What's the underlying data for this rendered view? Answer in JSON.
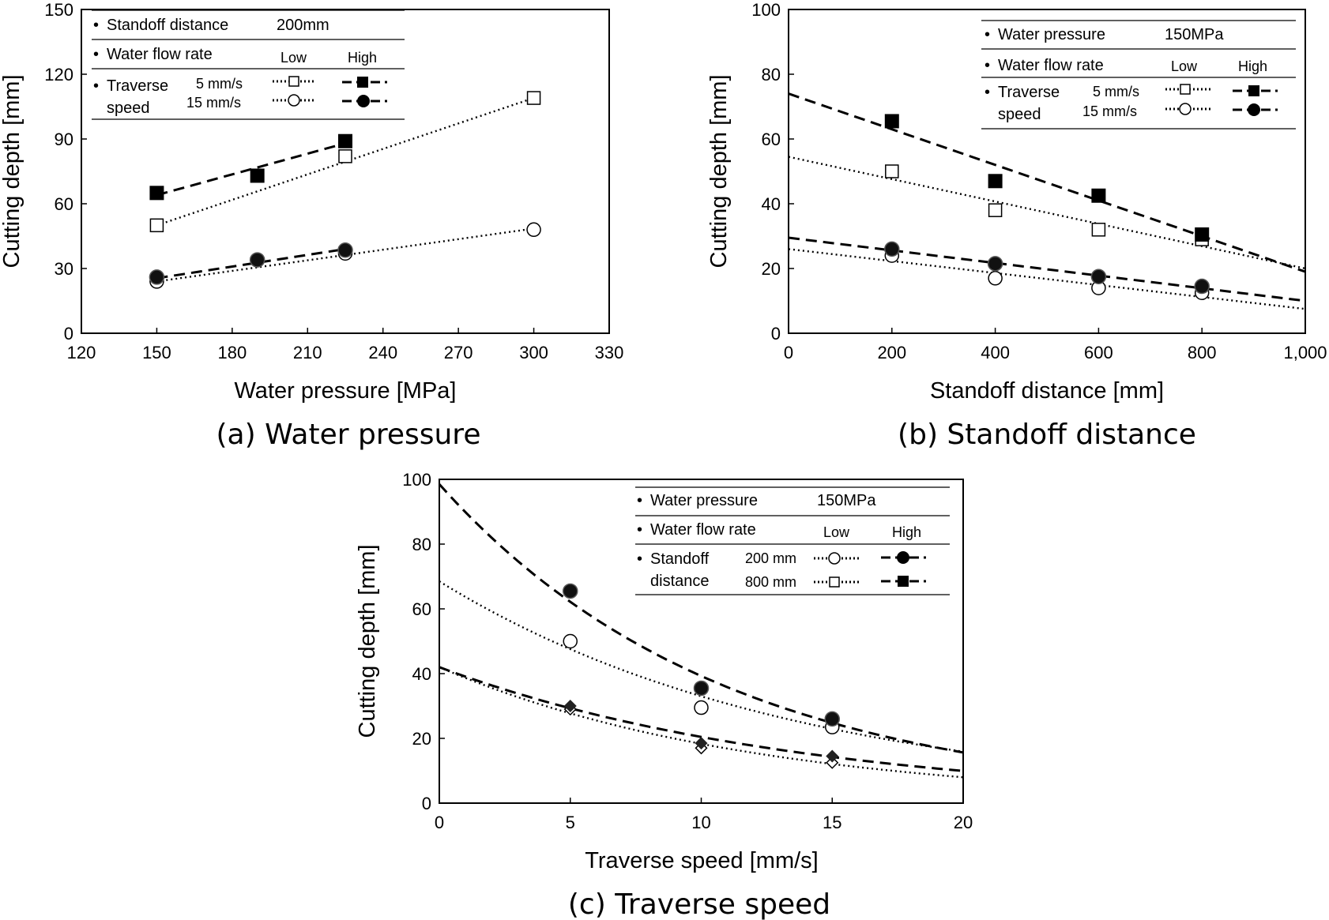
{
  "chart_data": [
    {
      "id": "a",
      "type": "scatter",
      "caption": "(a) Water pressure",
      "xlabel": "Water pressure [MPa]",
      "ylabel": "Cutting depth [mm]",
      "xlim": [
        120,
        330
      ],
      "ylim": [
        0,
        150
      ],
      "xticks": [
        120,
        150,
        180,
        210,
        240,
        270,
        300,
        330
      ],
      "yticks": [
        0,
        30,
        60,
        90,
        120,
        150
      ],
      "xtick_labels": [
        "120",
        "150",
        "180",
        "210",
        "240",
        "270",
        "300",
        "330"
      ],
      "ytick_labels": [
        "0",
        "30",
        "60",
        "90",
        "120",
        "150"
      ],
      "legend": {
        "row1_label": "Standoff distance",
        "row1_value": "200mm",
        "row2_label": "Water flow rate",
        "low": "Low",
        "high": "High",
        "row3_label_1": "Traverse",
        "row3_label_2": "speed",
        "item1": "5 mm/s",
        "item2": "15 mm/s"
      },
      "series": [
        {
          "name": "Low 5 mm/s",
          "marker": "square-open",
          "line": "dotted",
          "x": [
            150,
            225,
            300
          ],
          "y": [
            50,
            82,
            109
          ],
          "fit": [
            [
              150,
              50
            ],
            [
              300,
              109
            ]
          ]
        },
        {
          "name": "High 5 mm/s",
          "marker": "square-filled",
          "line": "dashed",
          "x": [
            150,
            190,
            225
          ],
          "y": [
            65,
            73,
            89
          ],
          "fit": [
            [
              150,
              64
            ],
            [
              225,
              88
            ]
          ]
        },
        {
          "name": "Low 15 mm/s",
          "marker": "circle-open",
          "line": "dotted",
          "x": [
            150,
            225,
            300
          ],
          "y": [
            24,
            37,
            48
          ],
          "fit": [
            [
              150,
              24
            ],
            [
              300,
              48.5
            ]
          ]
        },
        {
          "name": "High 15 mm/s",
          "marker": "circle-filled",
          "line": "dashed",
          "x": [
            150,
            190,
            225
          ],
          "y": [
            26,
            34,
            38.5
          ],
          "fit": [
            [
              150,
              25.5
            ],
            [
              225,
              39
            ]
          ]
        }
      ]
    },
    {
      "id": "b",
      "type": "scatter",
      "caption": "(b) Standoff distance",
      "xlabel": "Standoff distance [mm]",
      "ylabel": "Cutting depth [mm]",
      "xlim": [
        0,
        1000
      ],
      "ylim": [
        0,
        100
      ],
      "xticks": [
        0,
        200,
        400,
        600,
        800,
        1000
      ],
      "yticks": [
        0,
        20,
        40,
        60,
        80,
        100
      ],
      "xtick_labels": [
        "0",
        "200",
        "400",
        "600",
        "800",
        "1,000"
      ],
      "ytick_labels": [
        "0",
        "20",
        "40",
        "60",
        "80",
        "100"
      ],
      "legend": {
        "row1_label": "Water pressure",
        "row1_value": "150MPa",
        "row2_label": "Water flow rate",
        "low": "Low",
        "high": "High",
        "row3_label_1": "Traverse",
        "row3_label_2": "speed",
        "item1": "5 mm/s",
        "item2": "15 mm/s"
      },
      "series": [
        {
          "name": "Low 5 mm/s",
          "marker": "square-open",
          "line": "dotted",
          "x": [
            200,
            400,
            600,
            800
          ],
          "y": [
            50,
            38,
            32,
            29
          ],
          "fit": [
            [
              0,
              54.5
            ],
            [
              1000,
              20
            ]
          ]
        },
        {
          "name": "High 5 mm/s",
          "marker": "square-filled",
          "line": "dashed",
          "x": [
            200,
            400,
            600,
            800
          ],
          "y": [
            65.5,
            47,
            42.5,
            30.5
          ],
          "fit": [
            [
              0,
              74
            ],
            [
              1000,
              19
            ]
          ]
        },
        {
          "name": "Low 15 mm/s",
          "marker": "circle-open",
          "line": "dotted",
          "x": [
            200,
            400,
            600,
            800
          ],
          "y": [
            24,
            17,
            14,
            12.5
          ],
          "fit": [
            [
              0,
              26
            ],
            [
              1000,
              7.5
            ]
          ]
        },
        {
          "name": "High 15 mm/s",
          "marker": "circle-filled",
          "line": "dashed",
          "x": [
            200,
            400,
            600,
            800
          ],
          "y": [
            26,
            21.5,
            17.5,
            14.5
          ],
          "fit": [
            [
              0,
              29.5
            ],
            [
              1000,
              10
            ]
          ]
        }
      ]
    },
    {
      "id": "c",
      "type": "scatter",
      "caption": "(c) Traverse speed",
      "xlabel": "Traverse speed [mm/s]",
      "ylabel": "Cutting depth [mm]",
      "xlim": [
        0,
        20
      ],
      "ylim": [
        0,
        100
      ],
      "xticks": [
        0,
        5,
        10,
        15,
        20
      ],
      "yticks": [
        0,
        20,
        40,
        60,
        80,
        100
      ],
      "xtick_labels": [
        "0",
        "5",
        "10",
        "15",
        "20"
      ],
      "ytick_labels": [
        "0",
        "20",
        "40",
        "60",
        "80",
        "100"
      ],
      "legend": {
        "row1_label": "Water pressure",
        "row1_value": "150MPa",
        "row2_label": "Water flow rate",
        "low": "Low",
        "high": "High",
        "row3_label_1": "Standoff",
        "row3_label_2": "distance",
        "item1": "200 mm",
        "item2": "800 mm"
      },
      "series": [
        {
          "name": "Low 200 mm",
          "marker": "circle-open",
          "line": "dotted",
          "x": [
            5,
            10,
            15
          ],
          "y": [
            50,
            29.5,
            23.5
          ],
          "curve": {
            "a": 68.5,
            "b": 0.073
          }
        },
        {
          "name": "High 200 mm",
          "marker": "circle-filled",
          "line": "dashed",
          "x": [
            5,
            10,
            15
          ],
          "y": [
            65.5,
            35.5,
            26
          ],
          "curve": {
            "a": 98.5,
            "b": 0.092
          }
        },
        {
          "name": "Low 800 mm",
          "marker": "diamond-open",
          "line": "dotted",
          "x": [
            5,
            10,
            15
          ],
          "y": [
            29,
            17,
            12.5
          ],
          "curve": {
            "a": 42,
            "b": 0.083
          }
        },
        {
          "name": "High 800 mm",
          "marker": "diamond-filled",
          "line": "dashed",
          "x": [
            5,
            10,
            15
          ],
          "y": [
            30,
            18.5,
            14.5
          ],
          "curve": {
            "a": 42,
            "b": 0.072
          }
        }
      ]
    }
  ]
}
